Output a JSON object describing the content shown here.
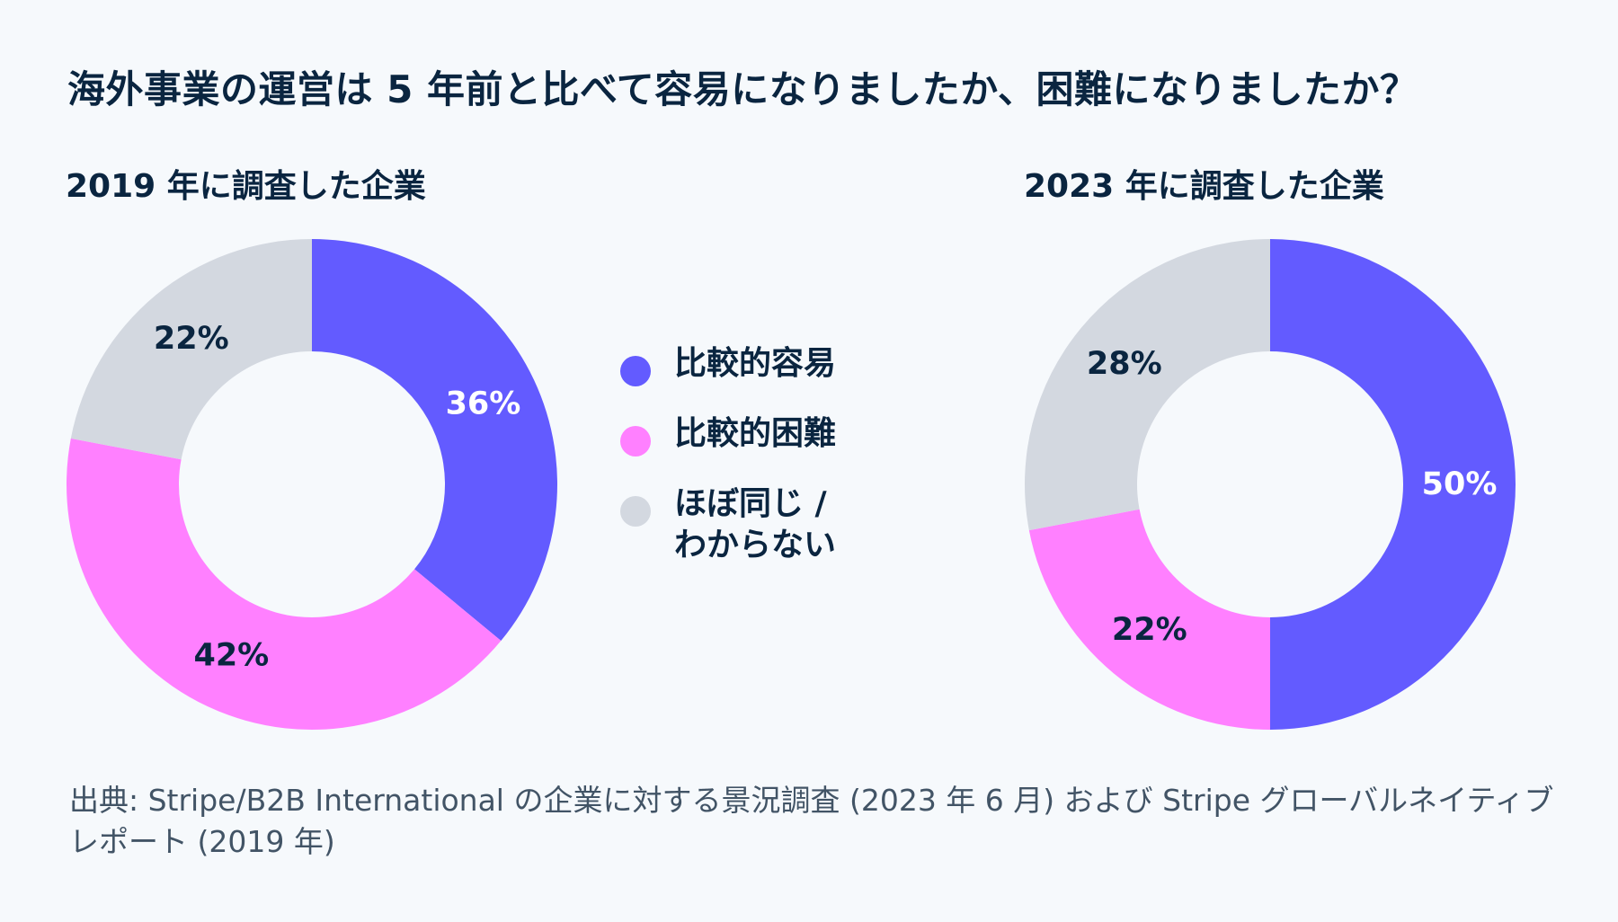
{
  "title": "海外事業の運営は 5 年前と比べて容易になりましたか、困難になりましたか？",
  "legend": [
    {
      "label": "比較的容易",
      "color": "#635bff"
    },
    {
      "label": "比較的困難",
      "color": "#ff80ff"
    },
    {
      "label": "ほぼ同じ /\nわからない",
      "color": "#d3d8e0"
    }
  ],
  "chart_data": [
    {
      "type": "pie",
      "title": "2019 年に調査した企業",
      "categories": [
        "比較的容易",
        "比較的困難",
        "ほぼ同じ / わからない"
      ],
      "values": [
        36,
        42,
        22
      ],
      "labels": [
        "36%",
        "42%",
        "22%"
      ],
      "colors": [
        "#635bff",
        "#ff80ff",
        "#d3d8e0"
      ],
      "label_colors": [
        "#ffffff",
        "#0a2540",
        "#0a2540"
      ]
    },
    {
      "type": "pie",
      "title": "2023 年に調査した企業",
      "categories": [
        "比較的容易",
        "比較的困難",
        "ほぼ同じ / わからない"
      ],
      "values": [
        50,
        22,
        28
      ],
      "labels": [
        "50%",
        "22%",
        "28%"
      ],
      "colors": [
        "#635bff",
        "#ff80ff",
        "#d3d8e0"
      ],
      "label_colors": [
        "#ffffff",
        "#0a2540",
        "#0a2540"
      ]
    }
  ],
  "source": "出典: Stripe/B2B International の企業に対する景況調査 (2023 年 6 月) および Stripe グローバルネイティブレポート (2019 年)"
}
